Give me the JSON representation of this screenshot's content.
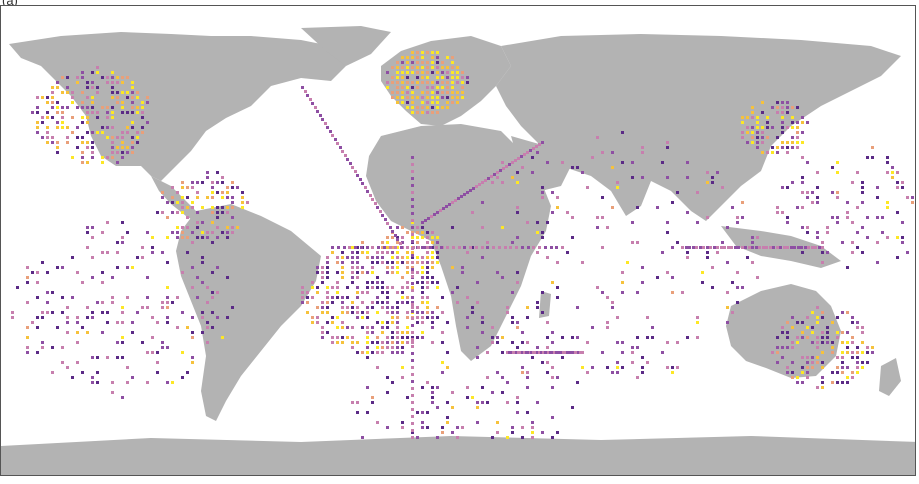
{
  "panel_label": "(a)",
  "map": {
    "projection": "equirectangular",
    "land_color": "#b3b3b3",
    "ocean_color": "#ffffff",
    "frame_color": "#555555",
    "density_palette": [
      "#5b2a86",
      "#8e4fa3",
      "#c77fae",
      "#e9a07a",
      "#f6c23c",
      "#fde725"
    ],
    "legend": "none"
  }
}
